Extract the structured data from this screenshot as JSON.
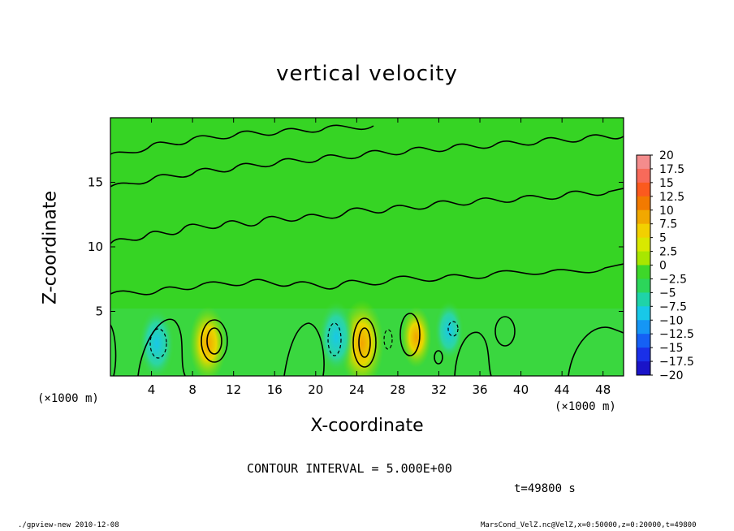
{
  "chart_data": {
    "type": "heatmap",
    "title": "vertical velocity",
    "xlabel": "X-coordinate",
    "ylabel": "Z-coordinate",
    "x_unit": "(×1000 m)",
    "xlim": [
      0,
      50
    ],
    "ylim": [
      0,
      20
    ],
    "x_ticks": [
      "4",
      "8",
      "12",
      "16",
      "20",
      "24",
      "28",
      "32",
      "36",
      "40",
      "44",
      "48"
    ],
    "y_ticks": [
      "5",
      "10",
      "15"
    ],
    "contour_interval": "CONTOUR INTERVAL = 5.000E+00",
    "colorbar": {
      "levels": [
        "20",
        "17.5",
        "15",
        "12.5",
        "10",
        "7.5",
        "5",
        "2.5",
        "0",
        "−2.5",
        "−5",
        "−7.5",
        "−10",
        "−12.5",
        "−15",
        "−17.5",
        "−20"
      ],
      "colors": [
        "#f48c8c",
        "#f86a5a",
        "#fb5a1e",
        "#f27a00",
        "#f1a800",
        "#f2d000",
        "#d9e800",
        "#a8e600",
        "#3ed72a",
        "#2cd65a",
        "#1fd3a8",
        "#18c8e8",
        "#1596f5",
        "#1560f5",
        "#1a30e8",
        "#1a14c8",
        "#4b10a8"
      ]
    },
    "features": [
      {
        "x": 9.5,
        "z": 2.5,
        "value": 7.5,
        "sign": "up"
      },
      {
        "x": 24.5,
        "z": 2.5,
        "value": 10,
        "sign": "up"
      },
      {
        "x": 29.8,
        "z": 3.0,
        "value": 5,
        "sign": "up"
      },
      {
        "x": 4.5,
        "z": 2.5,
        "value": -7.5,
        "sign": "down"
      },
      {
        "x": 22.0,
        "z": 3.0,
        "value": -7.5,
        "sign": "down"
      },
      {
        "x": 33.0,
        "z": 3.5,
        "value": -5,
        "sign": "down"
      }
    ]
  },
  "annotations": {
    "time": "t=49800 s",
    "footer_left": "./gpview-new   2010-12-08",
    "footer_right": "MarsCond_VelZ.nc@VelZ,x=0:50000,z=0:20000,t=49800"
  }
}
